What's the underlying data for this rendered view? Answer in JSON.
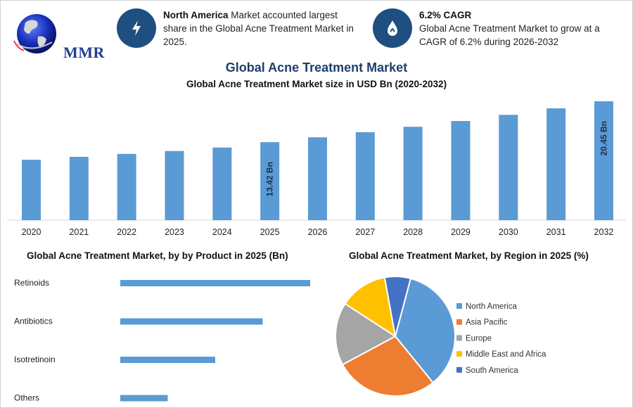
{
  "brand": {
    "logo_text": "MMR"
  },
  "highlights": [
    {
      "icon": "lightning-icon",
      "bold": "North America",
      "text": " Market accounted largest share in the Global Acne Treatment Market in 2025."
    },
    {
      "icon": "growth-drop-icon",
      "bold": "6.2% CAGR",
      "text": "Global Acne Treatment Market to grow at a CAGR of 6.2% during 2026-2032"
    }
  ],
  "page_title": "Global Acne Treatment Market",
  "colors": {
    "bar": "#5b9bd5",
    "title": "#1f3f6e",
    "icon_bg": "#1f4f80"
  },
  "chart_data": [
    {
      "type": "bar",
      "title": "Global Acne Treatment Market size in USD Bn (2020-2032)",
      "categories": [
        "2020",
        "2021",
        "2022",
        "2023",
        "2024",
        "2025",
        "2026",
        "2027",
        "2028",
        "2029",
        "2030",
        "2031",
        "2032"
      ],
      "values": [
        10.4,
        10.9,
        11.4,
        11.9,
        12.5,
        13.42,
        14.25,
        15.13,
        16.07,
        17.06,
        18.12,
        19.24,
        20.45
      ],
      "data_labels": {
        "5": "13.42 Bn",
        "12": "20.45 Bn"
      },
      "ylim": [
        0,
        20.45
      ]
    },
    {
      "type": "bar",
      "orientation": "horizontal",
      "title": "Global Acne Treatment Market, by by Product in 2025 (Bn)",
      "categories": [
        "Retinoids",
        "Antibiotics",
        "Isotretinoin",
        "Others"
      ],
      "values": [
        5.2,
        3.9,
        2.6,
        1.3
      ]
    },
    {
      "type": "pie",
      "title": "Global Acne Treatment Market, by Region in 2025 (%)",
      "labels": [
        "North America",
        "Asia Pacific",
        "Europe",
        "Middle East and Africa",
        "South America"
      ],
      "values": [
        35,
        28,
        17,
        13,
        7
      ],
      "colors": [
        "#5b9bd5",
        "#ed7d31",
        "#a5a5a5",
        "#ffc000",
        "#4472c4"
      ]
    }
  ]
}
